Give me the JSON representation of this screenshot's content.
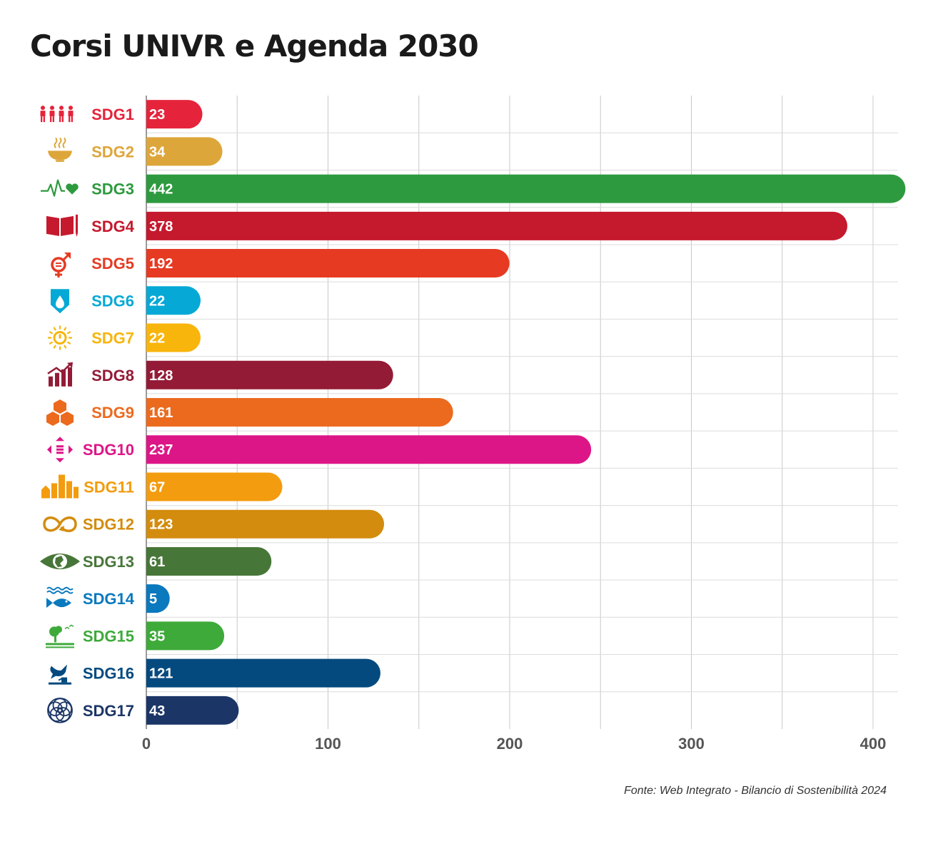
{
  "title": "Corsi UNIVR e Agenda 2030",
  "source": "Fonte: Web Integrato - Bilancio di Sostenibilità 2024",
  "chart_data": {
    "type": "bar",
    "orientation": "horizontal",
    "categories": [
      "SDG1",
      "SDG2",
      "SDG3",
      "SDG4",
      "SDG5",
      "SDG6",
      "SDG7",
      "SDG8",
      "SDG9",
      "SDG10",
      "SDG11",
      "SDG12",
      "SDG13",
      "SDG14",
      "SDG15",
      "SDG16",
      "SDG17"
    ],
    "values": [
      23,
      34,
      442,
      378,
      192,
      22,
      22,
      128,
      161,
      237,
      67,
      123,
      61,
      5,
      35,
      121,
      43
    ],
    "colors": [
      "#e5243b",
      "#dda63a",
      "#2e9a3f",
      "#c5192d",
      "#e63a22",
      "#06a9d6",
      "#f8b50b",
      "#931b36",
      "#ec6a1e",
      "#dd1687",
      "#f39c0f",
      "#d38c0e",
      "#477639",
      "#0a79be",
      "#3eaa3a",
      "#054a7f",
      "#1b3666"
    ],
    "icons": [
      "people-icon",
      "bowl-icon",
      "heartbeat-icon",
      "book-icon",
      "gender-icon",
      "water-drop-icon",
      "sun-icon",
      "growth-chart-icon",
      "cubes-icon",
      "inequality-arrows-icon",
      "city-buildings-icon",
      "infinity-loop-icon",
      "eye-globe-icon",
      "fish-waves-icon",
      "tree-birds-icon",
      "dove-gavel-icon",
      "flower-rings-icon"
    ],
    "xticks": [
      0,
      100,
      200,
      300,
      400
    ],
    "xlim": [
      0,
      410
    ],
    "grid": true,
    "xlabel": "",
    "ylabel": ""
  }
}
